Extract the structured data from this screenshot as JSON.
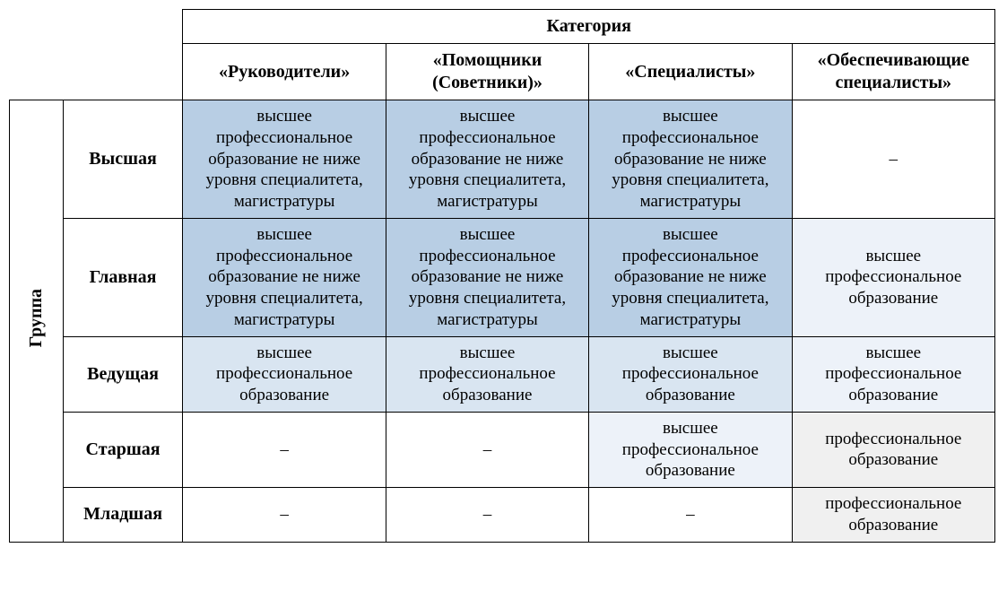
{
  "type": "table",
  "background_color": "#ffffff",
  "border_color": "#000000",
  "font_family": "Times New Roman",
  "header_fontsize": 20,
  "cell_fontsize": 19,
  "dash": "–",
  "headers": {
    "category_group": "Категория",
    "categories": [
      "«Руководители»",
      "«Помощники (Советники)»",
      "«Специалисты»",
      "«Обеспечивающие специалисты»"
    ],
    "group_label": "Группа",
    "groups": [
      "Высшая",
      "Главная",
      "Ведущая",
      "Старшая",
      "Младшая"
    ]
  },
  "colors": {
    "blue_medium": "#b8cee4",
    "blue_light": "#d9e5f1",
    "blue_vlight": "#edf2f9",
    "gray_light": "#f0f0f0"
  },
  "text": {
    "higher_prof_ed_specialist": "высшее профессиональное образование не ниже уровня специалитета, магистратуры",
    "higher_prof_ed": "высшее профессиональное образование",
    "prof_ed": "профессиональное образование"
  },
  "cells": [
    [
      {
        "key": "text.higher_prof_ed_specialist",
        "bg": "colors.blue_medium"
      },
      {
        "key": "text.higher_prof_ed_specialist",
        "bg": "colors.blue_medium"
      },
      {
        "key": "text.higher_prof_ed_specialist",
        "bg": "colors.blue_medium"
      },
      {
        "key": "dash",
        "bg": ""
      }
    ],
    [
      {
        "key": "text.higher_prof_ed_specialist",
        "bg": "colors.blue_medium"
      },
      {
        "key": "text.higher_prof_ed_specialist",
        "bg": "colors.blue_medium"
      },
      {
        "key": "text.higher_prof_ed_specialist",
        "bg": "colors.blue_medium"
      },
      {
        "key": "text.higher_prof_ed",
        "bg": "colors.blue_vlight"
      }
    ],
    [
      {
        "key": "text.higher_prof_ed",
        "bg": "colors.blue_light"
      },
      {
        "key": "text.higher_prof_ed",
        "bg": "colors.blue_light"
      },
      {
        "key": "text.higher_prof_ed",
        "bg": "colors.blue_light"
      },
      {
        "key": "text.higher_prof_ed",
        "bg": "colors.blue_vlight"
      }
    ],
    [
      {
        "key": "dash",
        "bg": ""
      },
      {
        "key": "dash",
        "bg": ""
      },
      {
        "key": "text.higher_prof_ed",
        "bg": "colors.blue_vlight"
      },
      {
        "key": "text.prof_ed",
        "bg": "colors.gray_light"
      }
    ],
    [
      {
        "key": "dash",
        "bg": ""
      },
      {
        "key": "dash",
        "bg": ""
      },
      {
        "key": "dash",
        "bg": ""
      },
      {
        "key": "text.prof_ed",
        "bg": "colors.gray_light"
      }
    ]
  ]
}
